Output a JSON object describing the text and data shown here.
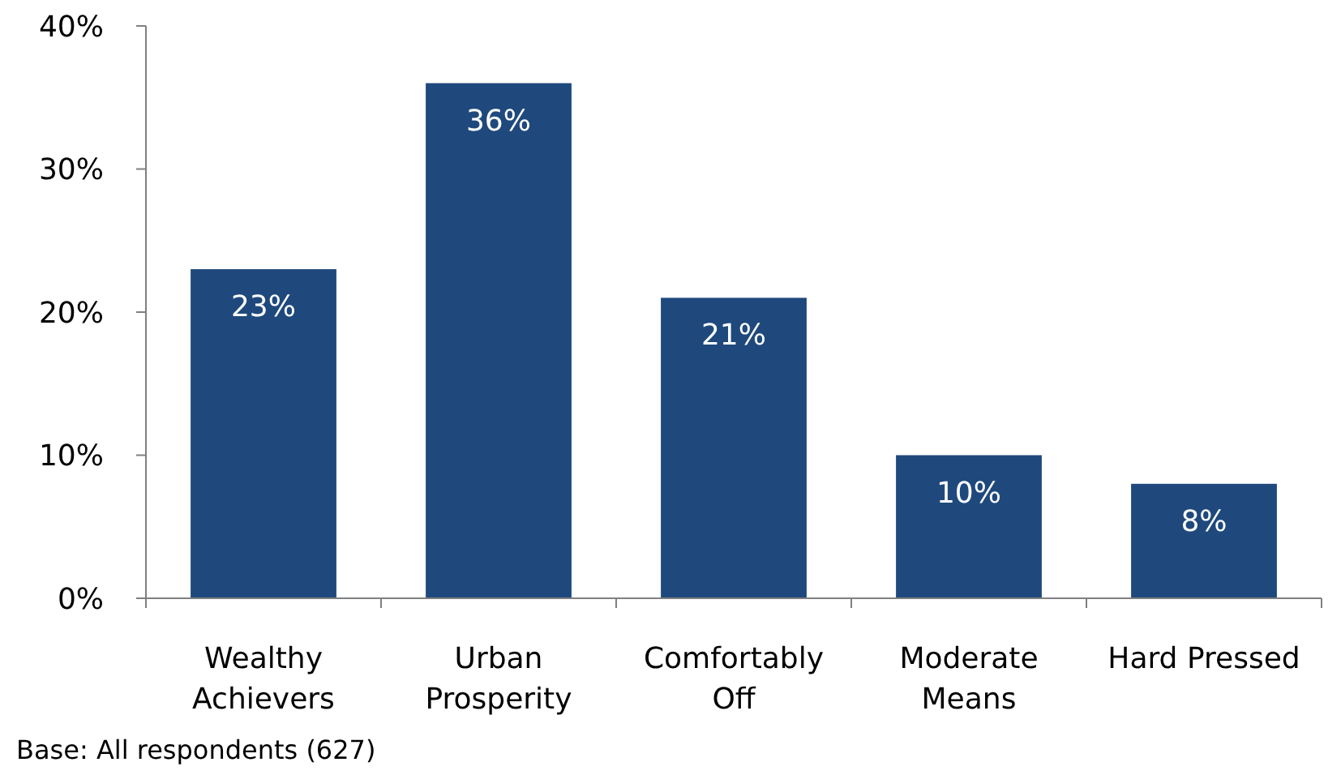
{
  "chart_data": {
    "type": "bar",
    "categories": [
      "Wealthy Achievers",
      "Urban Prosperity",
      "Comfortably Off",
      "Moderate Means",
      "Hard Pressed"
    ],
    "values": [
      23,
      36,
      21,
      10,
      8
    ],
    "value_labels": [
      "23%",
      "36%",
      "21%",
      "10%",
      "8%"
    ],
    "color": "#1f497d",
    "ylim": [
      0,
      40
    ],
    "yticks": [
      {
        "value": 0,
        "label": "0%"
      },
      {
        "value": 10,
        "label": "10%"
      },
      {
        "value": 20,
        "label": "20%"
      },
      {
        "value": 30,
        "label": "30%"
      },
      {
        "value": 40,
        "label": "40%"
      }
    ],
    "grid": false,
    "annotations": [
      "Base: All respondents (627)"
    ]
  }
}
